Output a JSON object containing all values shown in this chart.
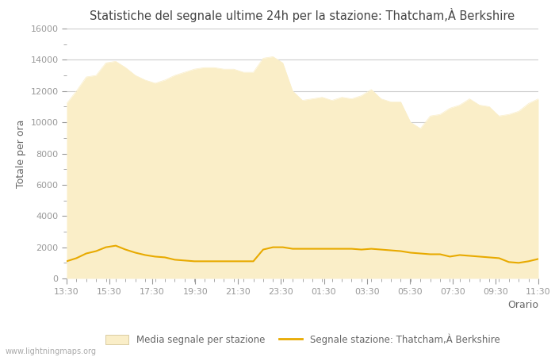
{
  "title": "Statistiche del segnale ultime 24h per la stazione: Thatcham,À Berkshire",
  "xlabel": "Orario",
  "ylabel": "Totale per ora",
  "watermark": "www.lightningmaps.org",
  "legend_area_label": "Media segnale per stazione",
  "legend_line_label": "Segnale stazione: Thatcham,À Berkshire",
  "x_ticks": [
    "13:30",
    "15:30",
    "17:30",
    "19:30",
    "21:30",
    "23:30",
    "01:30",
    "03:30",
    "05:30",
    "07:30",
    "09:30",
    "11:30"
  ],
  "ylim": [
    0,
    16000
  ],
  "yticks_major": [
    0,
    2000,
    4000,
    6000,
    8000,
    10000,
    12000,
    14000,
    16000
  ],
  "yticks_minor": [
    1000,
    3000,
    5000,
    7000,
    9000,
    11000,
    13000,
    15000
  ],
  "area_color": "#faeec8",
  "area_edge_color": "#faeec8",
  "line_color": "#e8aa00",
  "bg_color": "#ffffff",
  "grid_color": "#cccccc",
  "title_color": "#444444",
  "tick_color": "#999999",
  "label_color": "#666666",
  "area_data_x": [
    0,
    1,
    2,
    3,
    4,
    5,
    6,
    7,
    8,
    9,
    10,
    11,
    12,
    13,
    14,
    15,
    16,
    17,
    18,
    19,
    20,
    21,
    22,
    23,
    24,
    25,
    26,
    27,
    28,
    29,
    30,
    31,
    32,
    33,
    34,
    35,
    36,
    37,
    38,
    39,
    40,
    41,
    42,
    43,
    44,
    45,
    46,
    47,
    48
  ],
  "area_data_y": [
    11200,
    12000,
    12900,
    13000,
    13800,
    13900,
    13500,
    13000,
    12700,
    12500,
    12700,
    13000,
    13200,
    13400,
    13500,
    13500,
    13400,
    13400,
    13200,
    13200,
    14100,
    14200,
    13800,
    12000,
    11400,
    11500,
    11600,
    11400,
    11600,
    11500,
    11700,
    12100,
    11500,
    11300,
    11300,
    10000,
    9600,
    10400,
    10500,
    10900,
    11100,
    11500,
    11100,
    11000,
    10400,
    10500,
    10700,
    11200,
    11500
  ],
  "line_data_y": [
    1100,
    1300,
    1600,
    1750,
    2000,
    2100,
    1850,
    1650,
    1500,
    1400,
    1350,
    1200,
    1150,
    1100,
    1100,
    1100,
    1100,
    1100,
    1100,
    1100,
    1850,
    2000,
    2000,
    1900,
    1900,
    1900,
    1900,
    1900,
    1900,
    1900,
    1850,
    1900,
    1850,
    1800,
    1750,
    1650,
    1600,
    1550,
    1550,
    1400,
    1500,
    1450,
    1400,
    1350,
    1300,
    1050,
    1000,
    1100,
    1250
  ]
}
